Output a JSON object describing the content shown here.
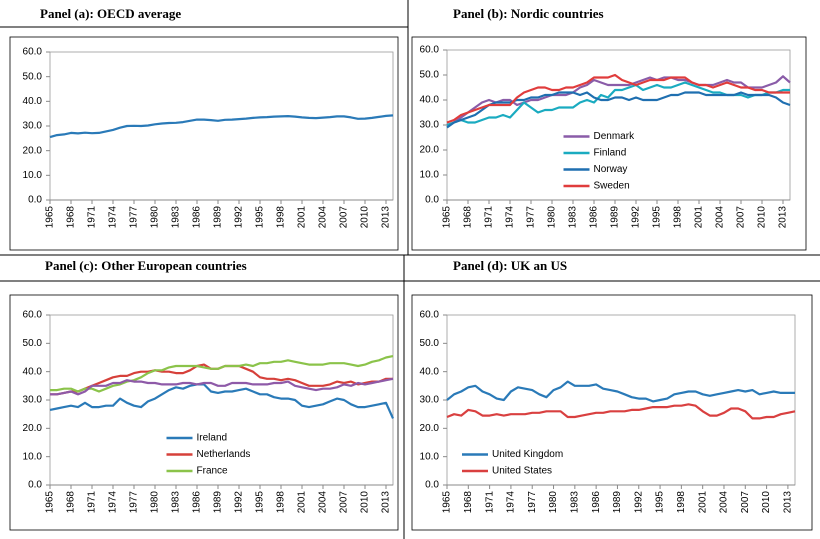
{
  "chart_data": [
    {
      "type": "line",
      "title": "Panel (a): OECD average",
      "x": [
        1965,
        1966,
        1967,
        1968,
        1969,
        1970,
        1971,
        1972,
        1973,
        1974,
        1975,
        1976,
        1977,
        1978,
        1979,
        1980,
        1981,
        1982,
        1983,
        1984,
        1985,
        1986,
        1987,
        1988,
        1989,
        1990,
        1991,
        1992,
        1993,
        1994,
        1995,
        1996,
        1997,
        1998,
        1999,
        2000,
        2001,
        2002,
        2003,
        2004,
        2005,
        2006,
        2007,
        2008,
        2009,
        2010,
        2011,
        2012,
        2013,
        2014
      ],
      "xlim": [
        1965,
        2014
      ],
      "xticks": [
        1965,
        1968,
        1971,
        1974,
        1977,
        1980,
        1983,
        1986,
        1989,
        1992,
        1995,
        1998,
        2001,
        2004,
        2007,
        2010,
        2013
      ],
      "ylim": [
        0,
        60
      ],
      "yticks": [
        {
          "value": 0,
          "label": "0.0"
        },
        {
          "value": 10,
          "label": "10.0"
        },
        {
          "value": 20,
          "label": "20.0"
        },
        {
          "value": 30,
          "label": "30.0"
        },
        {
          "value": 40,
          "label": "40.0"
        },
        {
          "value": 50,
          "label": "50.0"
        },
        {
          "value": 60,
          "label": "60.0"
        }
      ],
      "series": [
        {
          "color": "#2a7ab8",
          "values": [
            25.5,
            26.3,
            26.6,
            27.2,
            27.0,
            27.3,
            27.1,
            27.2,
            27.8,
            28.4,
            29.3,
            30.0,
            30.1,
            30.0,
            30.2,
            30.7,
            31.0,
            31.2,
            31.3,
            31.6,
            32.1,
            32.6,
            32.6,
            32.4,
            32.1,
            32.5,
            32.6,
            32.8,
            33.0,
            33.3,
            33.5,
            33.6,
            33.8,
            33.9,
            34.0,
            33.8,
            33.5,
            33.3,
            33.2,
            33.4,
            33.6,
            33.9,
            33.9,
            33.5,
            32.9,
            33.0,
            33.3,
            33.7,
            34.1,
            34.3
          ]
        }
      ]
    },
    {
      "type": "line",
      "title": "Panel (b): Nordic countries",
      "x": [
        1965,
        1966,
        1967,
        1968,
        1969,
        1970,
        1971,
        1972,
        1973,
        1974,
        1975,
        1976,
        1977,
        1978,
        1979,
        1980,
        1981,
        1982,
        1983,
        1984,
        1985,
        1986,
        1987,
        1988,
        1989,
        1990,
        1991,
        1992,
        1993,
        1994,
        1995,
        1996,
        1997,
        1998,
        1999,
        2000,
        2001,
        2002,
        2003,
        2004,
        2005,
        2006,
        2007,
        2008,
        2009,
        2010,
        2011,
        2012,
        2013,
        2014
      ],
      "xlim": [
        1965,
        2014
      ],
      "xticks": [
        1965,
        1968,
        1971,
        1974,
        1977,
        1980,
        1983,
        1986,
        1989,
        1992,
        1995,
        1998,
        2001,
        2004,
        2007,
        2010,
        2013
      ],
      "ylim": [
        0,
        60
      ],
      "yticks": [
        {
          "value": 0,
          "label": "0.0"
        },
        {
          "value": 10,
          "label": "10.0"
        },
        {
          "value": 20,
          "label": "20.0"
        },
        {
          "value": 30,
          "label": "30.0"
        },
        {
          "value": 40,
          "label": "40.0"
        },
        {
          "value": 50,
          "label": "50.0"
        },
        {
          "value": 60,
          "label": "60.0"
        }
      ],
      "legend": "lower center",
      "series": [
        {
          "name": "Denmark",
          "color": "#8a5ca8",
          "values": [
            30,
            31,
            33,
            35,
            37,
            39,
            40,
            39,
            40,
            40,
            38,
            39,
            40,
            40,
            41,
            42,
            42,
            42,
            43,
            45,
            46,
            48,
            47,
            46,
            46,
            46,
            46,
            47,
            48,
            49,
            48,
            49,
            49,
            48,
            48,
            47,
            46,
            46,
            46,
            47,
            48,
            47,
            47,
            45,
            45,
            45,
            46,
            47,
            49.5,
            47
          ]
        },
        {
          "name": "Finland",
          "color": "#1aabc0",
          "values": [
            30,
            31,
            32,
            31,
            31,
            32,
            33,
            33,
            34,
            33,
            36,
            39,
            37,
            35,
            36,
            36,
            37,
            37,
            37,
            39,
            40,
            39,
            42,
            41,
            44,
            44,
            45,
            46,
            44,
            45,
            46,
            45,
            45,
            46,
            47,
            46,
            45,
            44,
            43,
            43,
            42,
            42,
            42,
            41,
            42,
            42,
            43,
            43,
            44,
            44
          ]
        },
        {
          "name": "Norway",
          "color": "#1f6fb0",
          "values": [
            29,
            31,
            32,
            33,
            34,
            36,
            38,
            39,
            39,
            39,
            40,
            40,
            41,
            41,
            42,
            42,
            43,
            43,
            43,
            42,
            43,
            41,
            40,
            40,
            41,
            41,
            40,
            41,
            40,
            40,
            40,
            41,
            42,
            42,
            43,
            43,
            43,
            42,
            42,
            42,
            42,
            42,
            43,
            42,
            42,
            42,
            42,
            41,
            39,
            38
          ]
        },
        {
          "name": "Sweden",
          "color": "#e03c3c",
          "values": [
            31,
            32,
            34,
            35,
            36,
            37,
            38,
            38,
            38,
            38,
            41,
            43,
            44,
            45,
            45,
            44,
            44,
            45,
            45,
            46,
            47,
            49,
            49,
            49,
            50,
            48,
            47,
            46,
            47,
            48,
            48,
            48,
            49,
            49,
            49,
            47,
            46,
            46,
            45,
            46,
            47,
            46,
            45,
            45,
            44,
            44,
            43,
            43,
            43,
            43
          ]
        }
      ]
    },
    {
      "type": "line",
      "title": "Panel (c): Other European countries",
      "x": [
        1965,
        1966,
        1967,
        1968,
        1969,
        1970,
        1971,
        1972,
        1973,
        1974,
        1975,
        1976,
        1977,
        1978,
        1979,
        1980,
        1981,
        1982,
        1983,
        1984,
        1985,
        1986,
        1987,
        1988,
        1989,
        1990,
        1991,
        1992,
        1993,
        1994,
        1995,
        1996,
        1997,
        1998,
        1999,
        2000,
        2001,
        2002,
        2003,
        2004,
        2005,
        2006,
        2007,
        2008,
        2009,
        2010,
        2011,
        2012,
        2013,
        2014
      ],
      "xlim": [
        1965,
        2014
      ],
      "xticks": [
        1965,
        1968,
        1971,
        1974,
        1977,
        1980,
        1983,
        1986,
        1989,
        1992,
        1995,
        1998,
        2001,
        2004,
        2007,
        2010,
        2013
      ],
      "ylim": [
        0,
        60
      ],
      "yticks": [
        {
          "value": 0,
          "label": "0.0"
        },
        {
          "value": 10,
          "label": "10.0"
        },
        {
          "value": 20,
          "label": "20.0"
        },
        {
          "value": 30,
          "label": "30.0"
        },
        {
          "value": 40,
          "label": "40.0"
        },
        {
          "value": 50,
          "label": "50.0"
        },
        {
          "value": 60,
          "label": "60.0"
        }
      ],
      "legend": "lower center",
      "series": [
        {
          "name": "Ireland",
          "color": "#2a7ab8",
          "values": [
            26.5,
            27,
            27.5,
            28,
            27.5,
            29,
            27.5,
            27.5,
            28,
            28,
            30.5,
            29,
            28,
            27.5,
            29.5,
            30.5,
            32,
            33.5,
            34.5,
            34,
            35,
            35.5,
            35.5,
            33,
            32.5,
            33,
            33,
            33.5,
            34,
            33,
            32,
            32,
            31,
            30.5,
            30.5,
            30,
            28,
            27.5,
            28,
            28.5,
            29.5,
            30.5,
            30,
            28.5,
            27.5,
            27.5,
            28,
            28.5,
            29,
            23.5
          ]
        },
        {
          "name": "Netherlands",
          "color": "#d6403a",
          "values": [
            32,
            32,
            32.5,
            33,
            33,
            34,
            35,
            36,
            37,
            38,
            38.5,
            38.5,
            39.5,
            40,
            40,
            40.5,
            40,
            40,
            39.5,
            39.5,
            40.5,
            42,
            42.5,
            41,
            41,
            42,
            42,
            42,
            41,
            40,
            38,
            37.5,
            37.5,
            37,
            37.5,
            37,
            36,
            35,
            35,
            35,
            35.5,
            36.5,
            36,
            36.5,
            35.5,
            36,
            36.5,
            36.5,
            37.5,
            37.5
          ]
        },
        {
          "name": "France",
          "color": "#8bc34a",
          "values": [
            33.5,
            33.5,
            34,
            34,
            33,
            34,
            34,
            33,
            34,
            35,
            35.5,
            36.5,
            37,
            38,
            39.5,
            40.5,
            40.5,
            41.5,
            42,
            42,
            42,
            42,
            41.5,
            41,
            41,
            42,
            42,
            42,
            42.5,
            42,
            43,
            43,
            43.5,
            43.5,
            44,
            43.5,
            43,
            42.5,
            42.5,
            42.5,
            43,
            43,
            43,
            42.5,
            42,
            42.5,
            43.5,
            44,
            45,
            45.5
          ]
        },
        {
          "color": "#8e5aa8",
          "values": [
            32,
            32,
            32.5,
            33,
            32,
            33,
            35,
            35,
            35,
            36,
            36,
            37,
            36.5,
            36.5,
            36,
            36,
            35.5,
            35.5,
            35.5,
            36,
            36,
            35.5,
            36,
            36,
            35,
            35,
            36,
            36,
            36,
            35.5,
            35.5,
            35.5,
            36,
            36,
            36.5,
            35,
            34.5,
            34,
            33.5,
            34,
            34,
            34.5,
            35.5,
            35,
            36,
            35.5,
            36,
            36.5,
            37,
            37.5
          ]
        }
      ]
    },
    {
      "type": "line",
      "title": "Panel (d): UK an US",
      "x": [
        1965,
        1966,
        1967,
        1968,
        1969,
        1970,
        1971,
        1972,
        1973,
        1974,
        1975,
        1976,
        1977,
        1978,
        1979,
        1980,
        1981,
        1982,
        1983,
        1984,
        1985,
        1986,
        1987,
        1988,
        1989,
        1990,
        1991,
        1992,
        1993,
        1994,
        1995,
        1996,
        1997,
        1998,
        1999,
        2000,
        2001,
        2002,
        2003,
        2004,
        2005,
        2006,
        2007,
        2008,
        2009,
        2010,
        2011,
        2012,
        2013,
        2014
      ],
      "xlim": [
        1965,
        2014
      ],
      "xticks": [
        1965,
        1968,
        1971,
        1974,
        1977,
        1980,
        1983,
        1986,
        1989,
        1992,
        1995,
        1998,
        2001,
        2004,
        2007,
        2010,
        2013
      ],
      "ylim": [
        0,
        60
      ],
      "yticks": [
        {
          "value": 0,
          "label": "0.0"
        },
        {
          "value": 10,
          "label": "10.0"
        },
        {
          "value": 20,
          "label": "20.0"
        },
        {
          "value": 30,
          "label": "30.0"
        },
        {
          "value": 40,
          "label": "40.0"
        },
        {
          "value": 50,
          "label": "50.0"
        },
        {
          "value": 60,
          "label": "60.0"
        }
      ],
      "legend": "lower left",
      "series": [
        {
          "name": "United Kingdom",
          "color": "#2a7ab8",
          "values": [
            30,
            32,
            33,
            34.5,
            35,
            33,
            32,
            30.5,
            30,
            33,
            34.5,
            34,
            33.5,
            32,
            31,
            33.5,
            34.5,
            36.5,
            35,
            35,
            35,
            35.5,
            34,
            33.5,
            33,
            32,
            31,
            30.5,
            30.5,
            29.5,
            30,
            30.5,
            32,
            32.5,
            33,
            33,
            32,
            31.5,
            32,
            32.5,
            33,
            33.5,
            33,
            33.5,
            32,
            32.5,
            33,
            32.5,
            32.5,
            32.5
          ]
        },
        {
          "name": "United States",
          "color": "#d94040",
          "values": [
            24,
            25,
            24.5,
            26.5,
            26,
            24.5,
            24.5,
            25,
            24.5,
            25,
            25,
            25,
            25.5,
            25.5,
            26,
            26,
            26,
            24,
            24,
            24.5,
            25,
            25.5,
            25.5,
            26,
            26,
            26,
            26.5,
            26.5,
            27,
            27.5,
            27.5,
            27.5,
            28,
            28,
            28.5,
            28,
            26,
            24.5,
            24.5,
            25.5,
            27,
            27,
            26,
            23.5,
            23.5,
            24,
            24,
            25,
            25.5,
            26
          ]
        }
      ]
    }
  ]
}
